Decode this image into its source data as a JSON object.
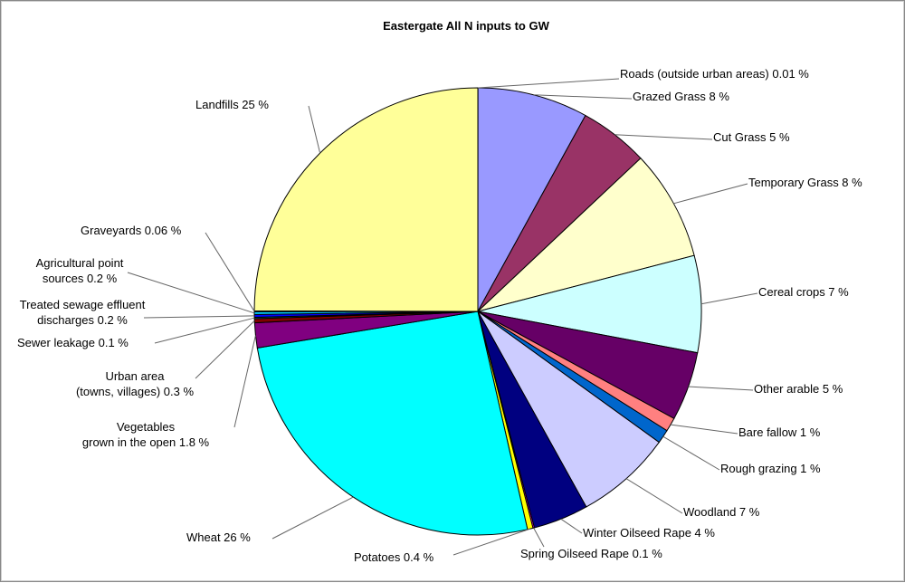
{
  "chart_data": {
    "type": "pie",
    "title": "Eastergate All N inputs to GW",
    "slices": [
      {
        "label": "Roads (outside urban areas)",
        "value": 0.01,
        "value_text": "0.01 %",
        "color": "#ffffff"
      },
      {
        "label": "Grazed Grass",
        "value": 8,
        "value_text": "8 %",
        "color": "#9999ff"
      },
      {
        "label": "Cut Grass",
        "value": 5,
        "value_text": "5 %",
        "color": "#993366"
      },
      {
        "label": "Temporary Grass",
        "value": 8,
        "value_text": "8 %",
        "color": "#ffffcc"
      },
      {
        "label": "Cereal crops",
        "value": 7,
        "value_text": "7 %",
        "color": "#ccffff"
      },
      {
        "label": "Other arable",
        "value": 5,
        "value_text": "5 %",
        "color": "#660066"
      },
      {
        "label": "Bare fallow",
        "value": 1,
        "value_text": "1 %",
        "color": "#ff8080"
      },
      {
        "label": "Rough grazing",
        "value": 1,
        "value_text": "1 %",
        "color": "#0066cc"
      },
      {
        "label": "Woodland",
        "value": 7,
        "value_text": "7 %",
        "color": "#ccccff"
      },
      {
        "label": "Winter Oilseed Rape",
        "value": 4,
        "value_text": "4 %",
        "color": "#000080"
      },
      {
        "label": "Spring Oilseed Rape",
        "value": 0.1,
        "value_text": "0.1 %",
        "color": "#ff00ff"
      },
      {
        "label": "Potatoes",
        "value": 0.4,
        "value_text": "0.4 %",
        "color": "#ffff00"
      },
      {
        "label": "Wheat",
        "value": 26,
        "value_text": "26 %",
        "color": "#00ffff"
      },
      {
        "label": "Vegetables grown in the open",
        "value": 1.8,
        "value_text": "1.8 %",
        "color": "#800080"
      },
      {
        "label": "Urban area (towns, villages)",
        "value": 0.3,
        "value_text": "0.3 %",
        "color": "#800000"
      },
      {
        "label": "Sewer leakage",
        "value": 0.1,
        "value_text": "0.1 %",
        "color": "#008080"
      },
      {
        "label": "Treated sewage effluent discharges",
        "value": 0.2,
        "value_text": "0.2 %",
        "color": "#0000ff"
      },
      {
        "label": "Agricultural point sources",
        "value": 0.2,
        "value_text": "0.2 %",
        "color": "#00ccff"
      },
      {
        "label": "Graveyards",
        "value": 0.06,
        "value_text": "0.06 %",
        "color": "#ccffcc"
      },
      {
        "label": "Landfills",
        "value": 25,
        "value_text": "25 %",
        "color": "#ffff99"
      }
    ]
  }
}
